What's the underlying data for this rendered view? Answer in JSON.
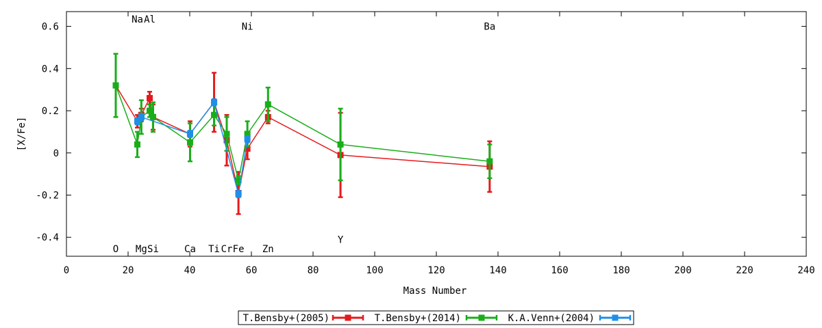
{
  "chart_data": {
    "type": "scatter",
    "xlabel": "Mass Number",
    "ylabel": "[X/Fe]",
    "xlim": [
      0,
      240
    ],
    "ylim": [
      -0.49,
      0.67
    ],
    "x_ticks": [
      0,
      20,
      40,
      60,
      80,
      100,
      120,
      140,
      160,
      180,
      200,
      220,
      240
    ],
    "y_ticks": [
      -0.4,
      -0.2,
      0,
      0.2,
      0.4,
      0.6
    ],
    "x_tick_labels": [
      "0",
      "20",
      "40",
      "60",
      "80",
      "100",
      "120",
      "140",
      "160",
      "180",
      "200",
      "220",
      "240"
    ],
    "y_tick_labels": [
      "-0.4",
      "-0.2",
      "0",
      "0.2",
      "0.4",
      "0.6"
    ],
    "grid": false,
    "legend_position": "bottom-center",
    "element_labels": [
      {
        "text": "O",
        "x": 16,
        "y": -0.455
      },
      {
        "text": "Na",
        "x": 23,
        "y": 0.635
      },
      {
        "text": "Mg",
        "x": 24.3,
        "y": -0.455
      },
      {
        "text": "Al",
        "x": 27,
        "y": 0.635
      },
      {
        "text": "Si",
        "x": 28.1,
        "y": -0.455
      },
      {
        "text": "Ca",
        "x": 40.1,
        "y": -0.455
      },
      {
        "text": "Ti",
        "x": 47.9,
        "y": -0.455
      },
      {
        "text": "Cr",
        "x": 52,
        "y": -0.455
      },
      {
        "text": "Fe",
        "x": 55.8,
        "y": -0.455
      },
      {
        "text": "Ni",
        "x": 58.7,
        "y": 0.6
      },
      {
        "text": "Zn",
        "x": 65.4,
        "y": -0.455
      },
      {
        "text": "Y",
        "x": 88.9,
        "y": -0.41
      },
      {
        "text": "Ba",
        "x": 137.3,
        "y": 0.6
      }
    ],
    "series": [
      {
        "name": "T.Bensby+(2005)",
        "color": "#e41a1c",
        "x": [
          16,
          23,
          24.3,
          27,
          28.1,
          40.1,
          47.9,
          52,
          55.8,
          58.7,
          65.4,
          88.9,
          137.3
        ],
        "y": [
          0.32,
          0.15,
          0.18,
          0.26,
          0.17,
          0.09,
          0.24,
          0.06,
          -0.19,
          0.02,
          0.17,
          -0.01,
          -0.065
        ],
        "err": [
          0.15,
          0.03,
          0.03,
          0.03,
          0.06,
          0.06,
          0.14,
          0.12,
          0.1,
          0.05,
          0.03,
          0.2,
          0.12
        ]
      },
      {
        "name": "T.Bensby+(2014)",
        "color": "#1aad1a",
        "x": [
          16,
          23,
          24.3,
          27,
          28.1,
          40.1,
          47.9,
          52,
          55.8,
          58.7,
          65.4,
          88.9,
          137.3
        ],
        "y": [
          0.32,
          0.04,
          0.17,
          0.2,
          0.17,
          0.05,
          0.18,
          0.09,
          -0.13,
          0.09,
          0.23,
          0.04,
          -0.04
        ],
        "err": [
          0.15,
          0.06,
          0.08,
          0.03,
          0.07,
          0.09,
          0.05,
          0.08,
          0.02,
          0.06,
          0.08,
          0.17,
          0.08
        ]
      },
      {
        "name": "K.A.Venn+(2004)",
        "color": "#1e8fe8",
        "x": [
          23,
          24.3,
          40.1,
          47.9,
          55.8,
          58.7
        ],
        "y": [
          0.15,
          0.17,
          0.09,
          0.24,
          -0.195,
          0.065
        ],
        "err": [
          0.015,
          0.015,
          0.015,
          0.015,
          0.015,
          0.015
        ]
      }
    ]
  }
}
